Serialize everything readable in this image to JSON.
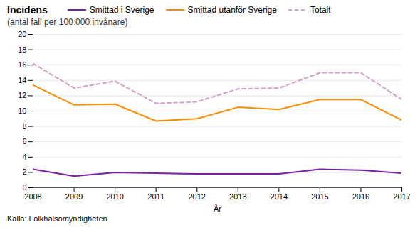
{
  "chart_data": {
    "type": "line",
    "title": "Incidens",
    "subtitle": "(antal fall per 100 000 invånare)",
    "xlabel": "År",
    "source": "Källa: Folkhälsomyndigheten",
    "x": [
      2008,
      2009,
      2010,
      2011,
      2012,
      2013,
      2014,
      2015,
      2016,
      2017
    ],
    "series": [
      {
        "name": "Smittad i Sverige",
        "color": "#7B1FA2",
        "line_style": "solid",
        "values": [
          2.4,
          1.5,
          2.0,
          1.9,
          1.8,
          1.8,
          1.8,
          2.4,
          2.3,
          1.9
        ]
      },
      {
        "name": "Smittad utanför Sverige",
        "color": "#FF8C00",
        "line_style": "solid",
        "values": [
          13.4,
          10.8,
          10.9,
          8.7,
          9.0,
          10.5,
          10.2,
          11.5,
          11.5,
          8.8
        ]
      },
      {
        "name": "Totalt",
        "color": "#D4A0C8",
        "line_style": "dashed",
        "values": [
          16.2,
          13.0,
          13.9,
          11.0,
          11.2,
          12.9,
          13.0,
          15.0,
          15.0,
          11.5
        ]
      }
    ],
    "xlim": [
      2008,
      2017
    ],
    "xticks": [
      2008,
      2009,
      2010,
      2011,
      2012,
      2013,
      2014,
      2015,
      2016,
      2017
    ],
    "ylim": [
      0,
      20
    ],
    "yticks": [
      0,
      2,
      4,
      6,
      8,
      10,
      12,
      14,
      16,
      18,
      20
    ],
    "grid": true,
    "legend": "top"
  }
}
